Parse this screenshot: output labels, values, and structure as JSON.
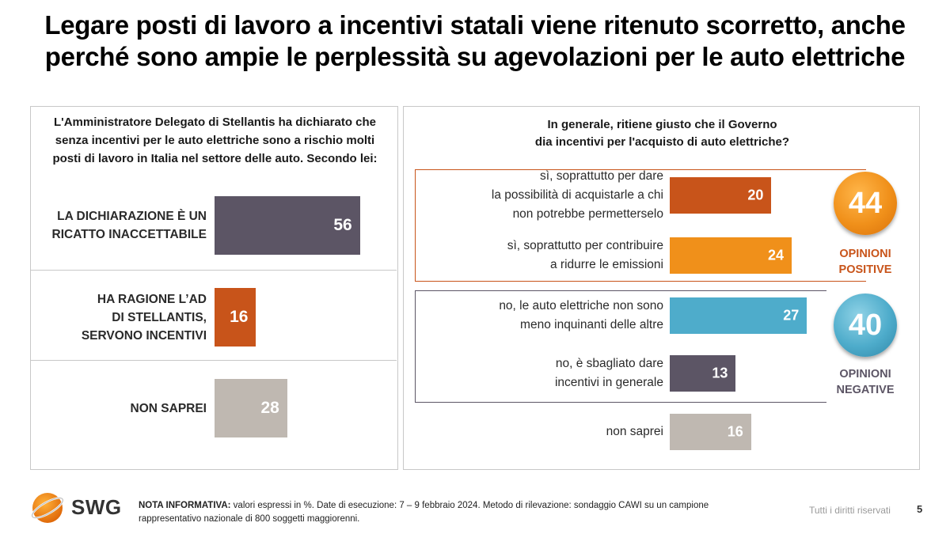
{
  "title": {
    "line1": "Legare posti di lavoro a incentivi statali viene ritenuto scorretto, anche",
    "line2": "perché sono ampie le perplessità su agevolazioni per le auto elettriche"
  },
  "colors": {
    "dark_purple": "#5c5565",
    "orange_red": "#c8541a",
    "orange": "#f0901a",
    "light_blue": "#4eaccb",
    "beige": "#bfb8b1",
    "negative_border": "#5c5565"
  },
  "chart_data": [
    {
      "type": "bar",
      "orientation": "horizontal",
      "title": "L'Amministratore Delegato di Stellantis ha dichiarato che senza incentivi per le auto elettriche sono a rischio molti posti di lavoro in Italia nel settore delle auto. Secondo lei:",
      "title_lines": [
        "L'Amministratore Delegato di Stellantis ha dichiarato che",
        "senza incentivi per le auto elettriche sono a rischio molti",
        "posti di lavoro in Italia nel settore delle auto. Secondo lei:"
      ],
      "unit": "%",
      "xlim": [
        0,
        60
      ],
      "bars": [
        {
          "label_lines": [
            "LA DICHIARAZIONE È UN",
            "RICATTO INACCETTABILE"
          ],
          "value": 56,
          "color": "#5c5565"
        },
        {
          "label_lines": [
            "HA RAGIONE L’AD",
            "DI STELLANTIS,",
            "SERVONO INCENTIVI"
          ],
          "value": 16,
          "color": "#c8541a"
        },
        {
          "label_lines": [
            "NON SAPREI"
          ],
          "value": 28,
          "color": "#bfb8b1"
        }
      ]
    },
    {
      "type": "bar",
      "orientation": "horizontal",
      "title": "In generale, ritiene giusto che il Governo dia incentivi per l'acquisto di auto elettriche?",
      "title_lines": [
        "In generale, ritiene giusto che il Governo",
        "dia incentivi per l'acquisto di auto elettriche?"
      ],
      "unit": "%",
      "xlim": [
        0,
        30
      ],
      "bars": [
        {
          "label_lines": [
            "sì, soprattutto per dare",
            "la possibilità di acquistarle a chi",
            "non potrebbe permetterselo"
          ],
          "value": 20,
          "color": "#c8541a"
        },
        {
          "label_lines": [
            "sì, soprattutto per contribuire",
            "a ridurre le emissioni"
          ],
          "value": 24,
          "color": "#f0901a"
        },
        {
          "label_lines": [
            "no, le auto elettriche non sono",
            "meno inquinanti delle altre"
          ],
          "value": 27,
          "color": "#4eaccb"
        },
        {
          "label_lines": [
            "no, è sbagliato dare",
            "incentivi in generale"
          ],
          "value": 13,
          "color": "#5c5565"
        },
        {
          "label_lines": [
            "non saprei"
          ],
          "value": 16,
          "color": "#bfb8b1"
        }
      ],
      "groups": [
        {
          "total": 44,
          "label_lines": [
            "OPINIONI",
            "POSITIVE"
          ],
          "color": "#f0901a",
          "label_color": "#c8541a"
        },
        {
          "total": 40,
          "label_lines": [
            "OPINIONI",
            "NEGATIVE"
          ],
          "color": "#4eaccb",
          "label_color": "#5c5565"
        }
      ]
    }
  ],
  "footer": {
    "note_label": "NOTA INFORMATIVA:",
    "note_text": " valori espressi in %. Date di esecuzione: 7 – 9 febbraio 2024. Metodo di rilevazione: sondaggio CAWI su un campione rappresentativo nazionale di 800 soggetti maggiorenni.",
    "rights": "Tutti i diritti riservati",
    "page_number": "5",
    "logo_text": "SWG"
  }
}
